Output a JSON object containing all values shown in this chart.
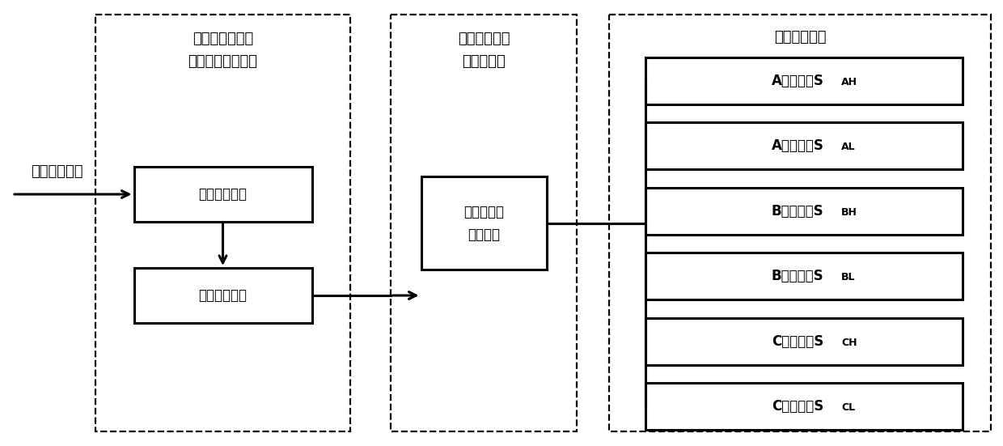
{
  "fig_width": 12.4,
  "fig_height": 5.51,
  "bg_color": "#ffffff",
  "input_label": "母线正端电流",
  "block1_title_line1": "母线电流检测与",
  "block1_title_line2": "过流故障判断单元",
  "block1_inner1": "母线电流检测",
  "block1_inner2": "过流故障判断",
  "block2_title_line1": "保护与释放延",
  "block2_title_line2": "时控制单元",
  "block2_inner_line1": "保护与释放",
  "block2_inner_line2": "延时控制",
  "block3_title": "过流保护单元",
  "block3_mains": [
    "A相上桥臂S",
    "A相下桥臂S",
    "B相上桥臂S",
    "B相下桥臂S",
    "C相上桥臂S",
    "C相下桥臂S"
  ],
  "block3_subs": [
    "AH",
    "AL",
    "BH",
    "BL",
    "CH",
    "CL"
  ],
  "lw_solid": 2.2,
  "lw_dash": 1.6,
  "font_size_label": 13,
  "font_size_title": 13,
  "font_size_inner": 12,
  "font_size_sub": 9
}
